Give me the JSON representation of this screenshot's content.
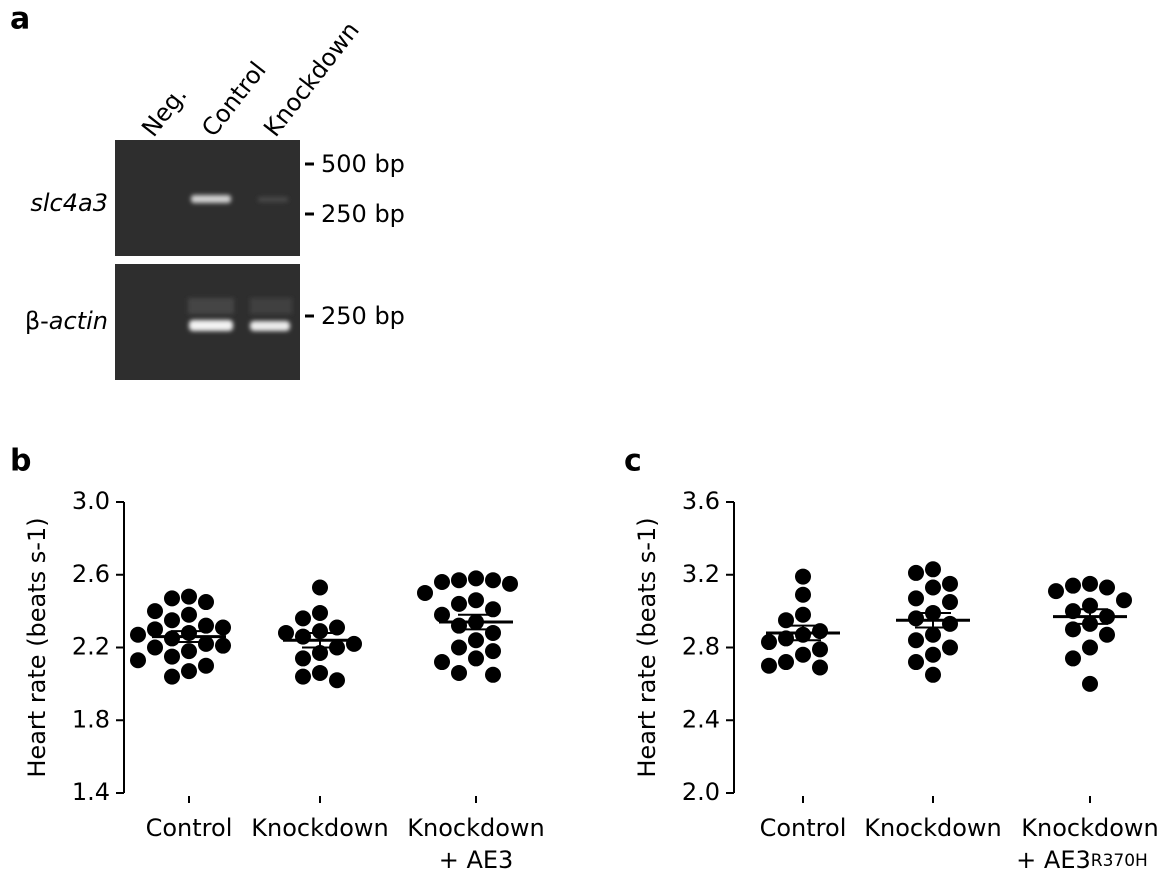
{
  "gel": {
    "panel_label": "a",
    "lanes": [
      "Neg.",
      "Control",
      "Knockdown"
    ],
    "rows": [
      {
        "gene": "slc4a3",
        "markers": [
          "500 bp",
          "250 bp"
        ]
      },
      {
        "prefix": "β-",
        "gene": "actin",
        "markers": [
          "250 bp"
        ]
      }
    ]
  },
  "chart_data": [
    {
      "type": "dotplot",
      "panel_label": "b",
      "y_label": "Heart rate (beats s-1)",
      "categories": [
        [
          "Control"
        ],
        [
          "Knockdown"
        ],
        [
          "Knockdown",
          "+ AE3"
        ]
      ],
      "ylim": [
        1.4,
        3.0
      ],
      "yticks": [
        1.4,
        1.8,
        2.2,
        2.6,
        {
          "value": 3.0,
          "label": "3.0"
        }
      ],
      "color": "#000000",
      "groups": [
        {
          "values": [
            2.48,
            2.47,
            2.45,
            2.4,
            2.38,
            2.35,
            2.32,
            2.31,
            2.3,
            2.28,
            2.27,
            2.25,
            2.22,
            2.21,
            2.2,
            2.18,
            2.15,
            2.13,
            2.1,
            2.07,
            2.04
          ],
          "mean": 2.26,
          "sem": 0.03
        },
        {
          "values": [
            2.53,
            2.39,
            2.36,
            2.31,
            2.29,
            2.28,
            2.26,
            2.22,
            2.2,
            2.17,
            2.14,
            2.06,
            2.04,
            2.02
          ],
          "mean": 2.24,
          "sem": 0.04
        },
        {
          "values": [
            2.58,
            2.57,
            2.57,
            2.56,
            2.55,
            2.5,
            2.46,
            2.44,
            2.41,
            2.38,
            2.34,
            2.32,
            2.28,
            2.24,
            2.2,
            2.18,
            2.14,
            2.12,
            2.06,
            2.05
          ],
          "mean": 2.34,
          "sem": 0.04
        }
      ]
    },
    {
      "type": "dotplot",
      "panel_label": "c",
      "y_label": "Heart rate (beats s-1)",
      "categories": [
        [
          "Control"
        ],
        [
          "Knockdown"
        ],
        [
          "Knockdown",
          "+ AE3",
          "R370H"
        ]
      ],
      "ylim": [
        2.0,
        3.6
      ],
      "yticks": [
        {
          "value": 2.0,
          "label": "2.0"
        },
        2.4,
        2.8,
        3.2,
        3.6
      ],
      "color": "#000000",
      "groups": [
        {
          "values": [
            3.19,
            3.09,
            2.98,
            2.95,
            2.89,
            2.87,
            2.85,
            2.83,
            2.79,
            2.76,
            2.72,
            2.7,
            2.69
          ],
          "mean": 2.88,
          "sem": 0.04
        },
        {
          "values": [
            3.23,
            3.21,
            3.15,
            3.13,
            3.07,
            3.05,
            2.99,
            2.96,
            2.93,
            2.87,
            2.84,
            2.8,
            2.76,
            2.72,
            2.65
          ],
          "mean": 2.95,
          "sem": 0.04
        },
        {
          "values": [
            3.15,
            3.14,
            3.13,
            3.11,
            3.06,
            3.03,
            3.0,
            2.97,
            2.93,
            2.9,
            2.87,
            2.8,
            2.74,
            2.6
          ],
          "mean": 2.97,
          "sem": 0.04
        }
      ]
    }
  ]
}
